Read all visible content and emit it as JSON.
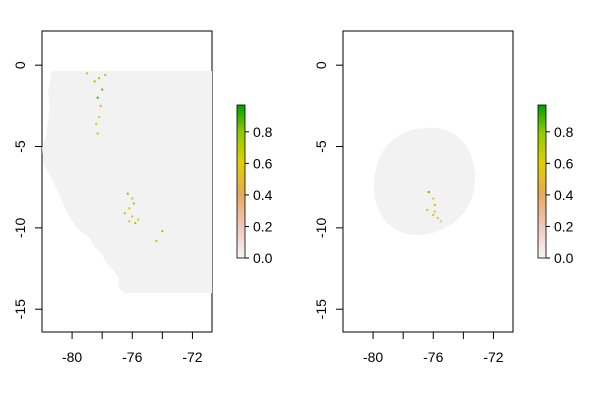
{
  "chart_data": [
    {
      "type": "heatmap",
      "title": "",
      "xlabel": "",
      "ylabel": "",
      "xlim": [
        -82,
        -70.7
      ],
      "ylim": [
        -16.4,
        2.1
      ],
      "x_ticks": [
        -80,
        -78,
        -76,
        -74,
        -72
      ],
      "x_tick_labels": [
        "-80",
        "",
        "-76",
        "",
        "-72"
      ],
      "y_ticks": [
        0,
        -5,
        -10,
        -15
      ],
      "y_tick_labels": [
        "0",
        "-5",
        "-10",
        "-15"
      ],
      "region": "country-outline",
      "region_color": "#f2f2f2",
      "colorbar": {
        "range": [
          0,
          0.97
        ],
        "ticks": [
          0.0,
          0.2,
          0.4,
          0.6,
          0.8
        ],
        "tick_labels": [
          "0.0",
          "0.2",
          "0.4",
          "0.6",
          "0.8"
        ],
        "colors": [
          "#f5f5f5",
          "#f0c9c0",
          "#e8a85a",
          "#e0d000",
          "#8ccc00",
          "#00a000"
        ]
      },
      "points": [
        {
          "x": -79.0,
          "y": -0.5,
          "v": 0.7
        },
        {
          "x": -78.5,
          "y": -1.0,
          "v": 0.8
        },
        {
          "x": -78.2,
          "y": -0.8,
          "v": 0.75
        },
        {
          "x": -78.0,
          "y": -1.5,
          "v": 0.85
        },
        {
          "x": -77.8,
          "y": -0.6,
          "v": 0.7
        },
        {
          "x": -78.3,
          "y": -2.0,
          "v": 0.9
        },
        {
          "x": -78.1,
          "y": -2.5,
          "v": 0.7
        },
        {
          "x": -78.2,
          "y": -3.2,
          "v": 0.6
        },
        {
          "x": -78.4,
          "y": -3.6,
          "v": 0.65
        },
        {
          "x": -78.3,
          "y": -4.2,
          "v": 0.7
        },
        {
          "x": -76.3,
          "y": -7.9,
          "v": 0.8
        },
        {
          "x": -76.0,
          "y": -8.2,
          "v": 0.5
        },
        {
          "x": -75.9,
          "y": -8.5,
          "v": 0.75
        },
        {
          "x": -76.2,
          "y": -8.8,
          "v": 0.55
        },
        {
          "x": -76.5,
          "y": -9.1,
          "v": 0.7
        },
        {
          "x": -76.0,
          "y": -9.3,
          "v": 0.5
        },
        {
          "x": -75.6,
          "y": -9.5,
          "v": 0.6
        },
        {
          "x": -75.8,
          "y": -9.7,
          "v": 0.75
        },
        {
          "x": -76.2,
          "y": -9.6,
          "v": 0.45
        },
        {
          "x": -74.0,
          "y": -10.2,
          "v": 0.8
        },
        {
          "x": -74.4,
          "y": -10.8,
          "v": 0.7
        }
      ]
    },
    {
      "type": "heatmap",
      "title": "",
      "xlabel": "",
      "ylabel": "",
      "xlim": [
        -82,
        -70.7
      ],
      "ylim": [
        -16.4,
        2.1
      ],
      "x_ticks": [
        -80,
        -78,
        -76,
        -74,
        -72
      ],
      "x_tick_labels": [
        "-80",
        "",
        "-76",
        "",
        "-72"
      ],
      "y_ticks": [
        0,
        -5,
        -10,
        -15
      ],
      "y_tick_labels": [
        "0",
        "-5",
        "-10",
        "-15"
      ],
      "region": "circular-buffer",
      "region_color": "#f2f2f2",
      "colorbar": {
        "range": [
          0,
          0.97
        ],
        "ticks": [
          0.0,
          0.2,
          0.4,
          0.6,
          0.8
        ],
        "tick_labels": [
          "0.0",
          "0.2",
          "0.4",
          "0.6",
          "0.8"
        ],
        "colors": [
          "#f5f5f5",
          "#f0c9c0",
          "#e8a85a",
          "#e0d000",
          "#8ccc00",
          "#00a000"
        ]
      },
      "points": [
        {
          "x": -76.3,
          "y": -7.8,
          "v": 0.85
        },
        {
          "x": -76.0,
          "y": -8.2,
          "v": 0.6
        },
        {
          "x": -75.9,
          "y": -8.6,
          "v": 0.7
        },
        {
          "x": -76.4,
          "y": -8.9,
          "v": 0.5
        },
        {
          "x": -76.0,
          "y": -9.2,
          "v": 0.45
        },
        {
          "x": -75.7,
          "y": -9.4,
          "v": 0.35
        },
        {
          "x": -75.5,
          "y": -9.6,
          "v": 0.3
        },
        {
          "x": -75.9,
          "y": -9.0,
          "v": 0.65
        }
      ]
    }
  ]
}
